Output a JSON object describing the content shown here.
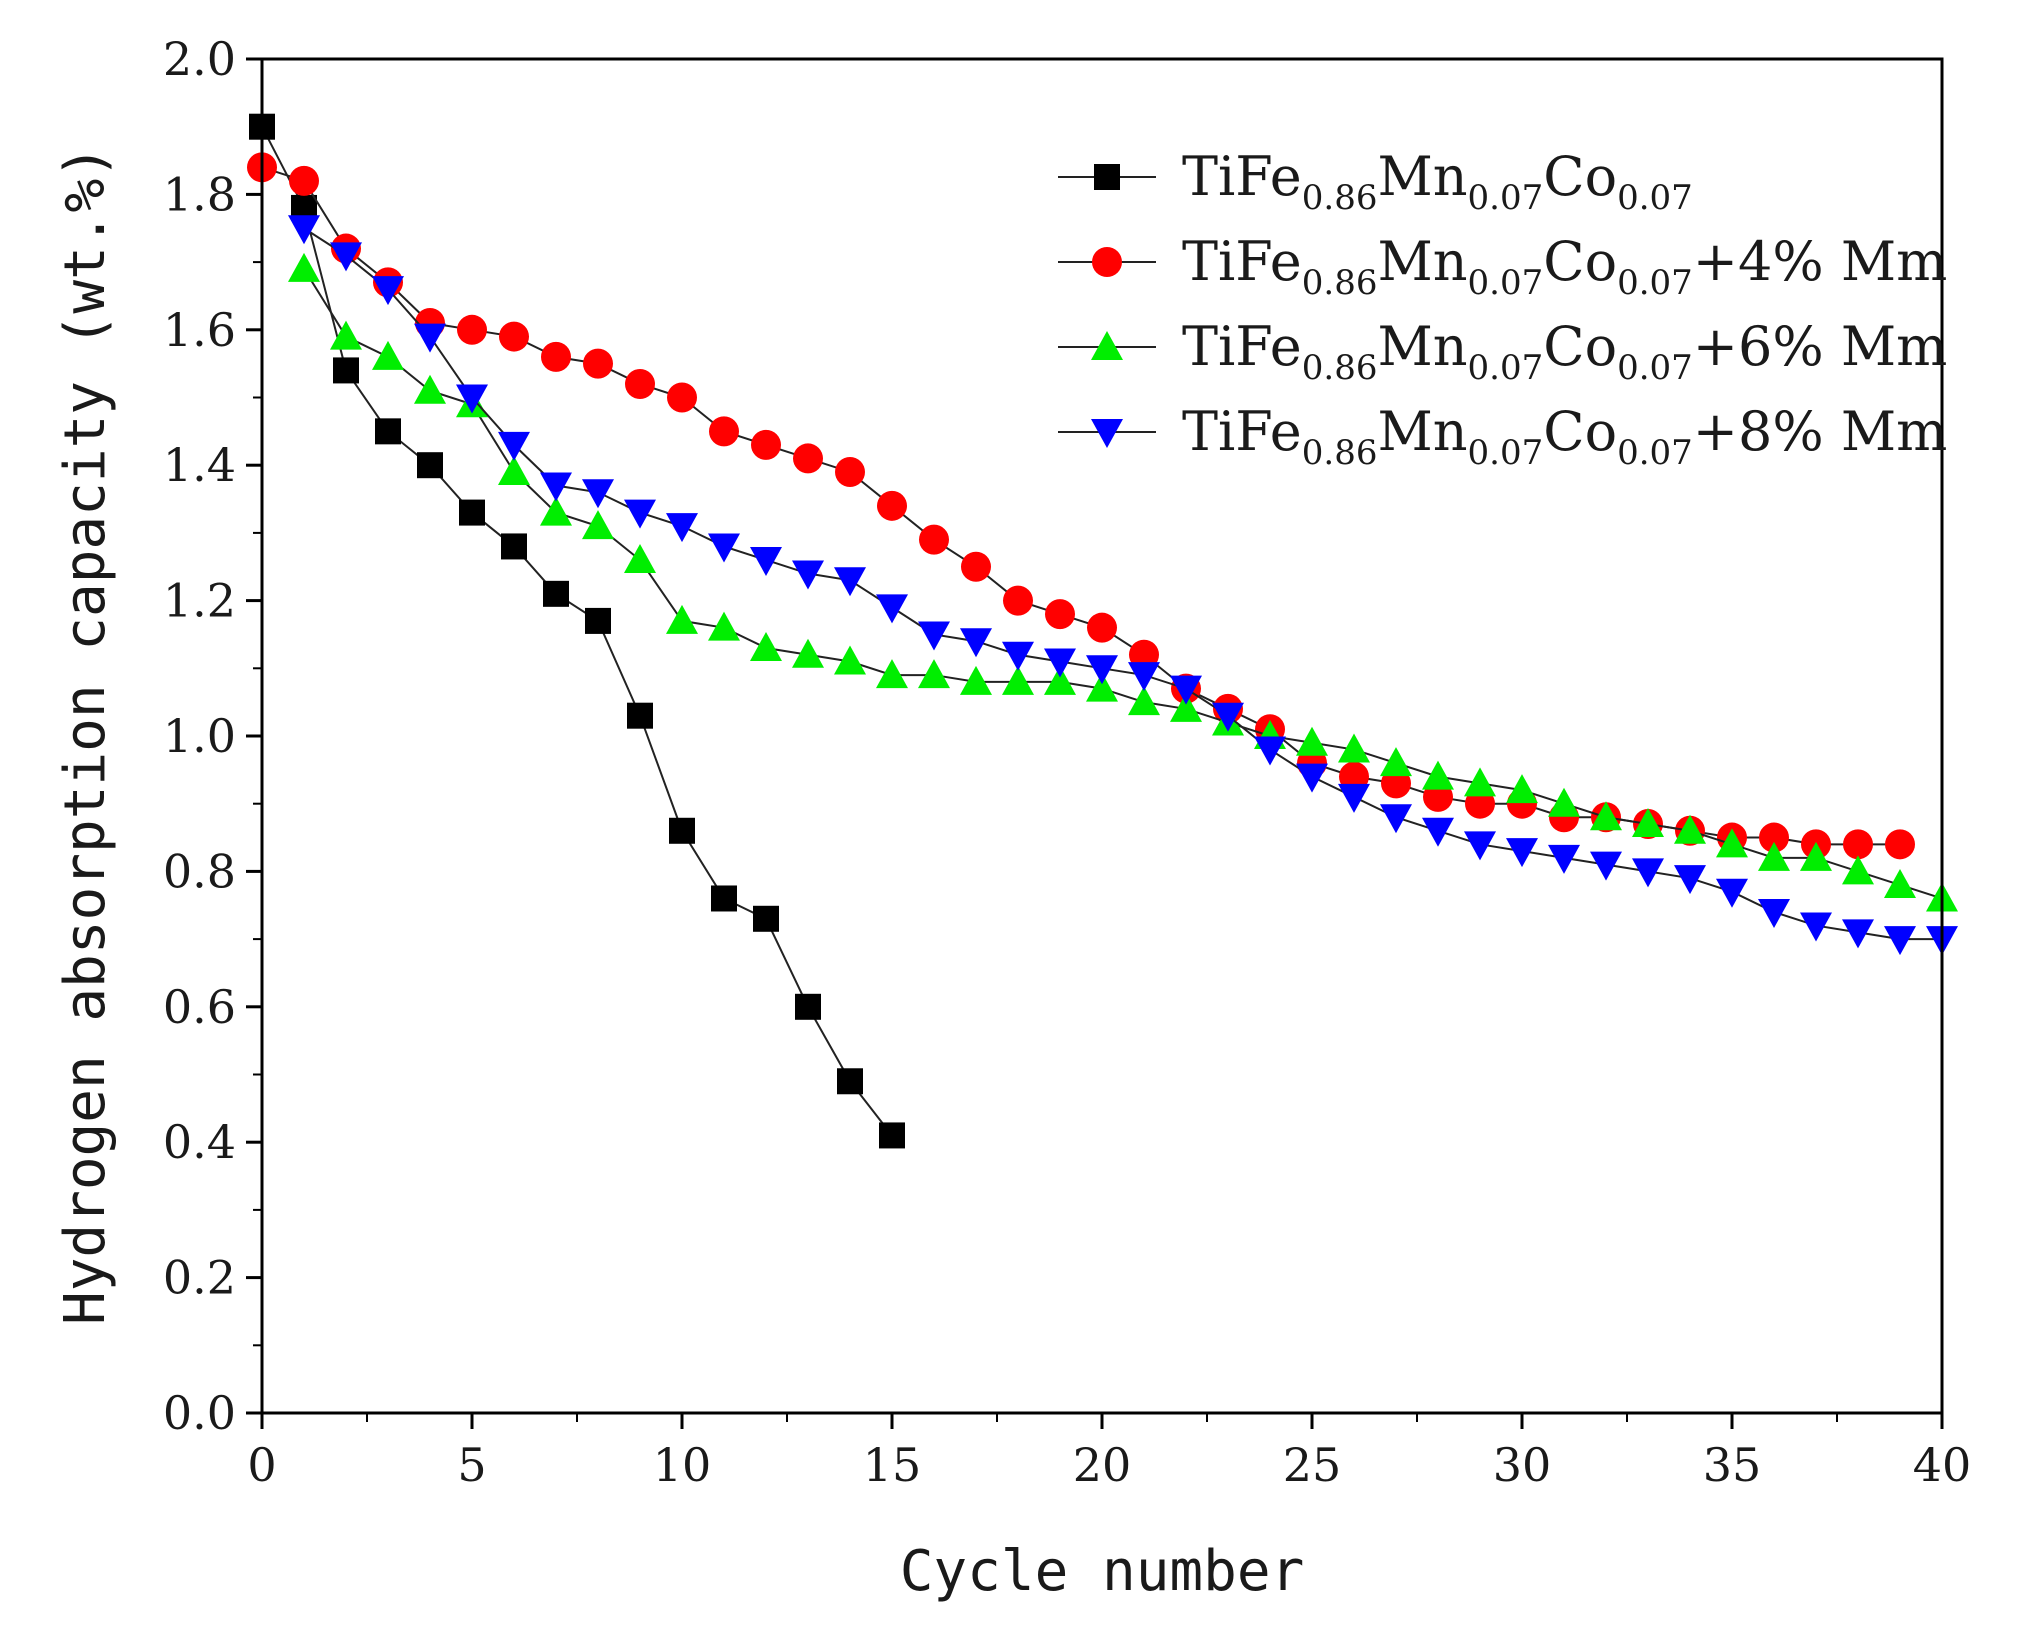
{
  "chart_data": {
    "type": "line",
    "title": "",
    "xlabel": "Cycle number",
    "ylabel": "Hydrogen absorption capacity (wt.%)",
    "xlim": [
      0,
      40
    ],
    "ylim": [
      0.0,
      2.0
    ],
    "x_major_ticks": [
      0,
      5,
      10,
      15,
      20,
      25,
      30,
      35,
      40
    ],
    "x_tick_labels": [
      "0",
      "5",
      "10",
      "15",
      "20",
      "25",
      "30",
      "35",
      "40"
    ],
    "y_major_ticks": [
      0.0,
      0.2,
      0.4,
      0.6,
      0.8,
      1.0,
      1.2,
      1.4,
      1.6,
      1.8,
      2.0
    ],
    "y_tick_labels": [
      "0.0",
      "0.2",
      "0.4",
      "0.6",
      "0.8",
      "1.0",
      "1.2",
      "1.4",
      "1.6",
      "1.8",
      "2.0"
    ],
    "grid": false,
    "legend_position": "top-right",
    "series": [
      {
        "name": "TiFe0.86Mn0.07Co0.07",
        "legend_parts": [
          [
            "TiFe",
            ""
          ],
          [
            "0.86",
            "sub"
          ],
          [
            "Mn",
            ""
          ],
          [
            "0.07",
            "sub"
          ],
          [
            "Co",
            ""
          ],
          [
            "0.07",
            "sub"
          ]
        ],
        "marker": "square",
        "color": "#000000",
        "x": [
          0,
          1,
          2,
          3,
          4,
          5,
          6,
          7,
          8,
          9,
          10,
          11,
          12,
          13,
          14,
          15
        ],
        "values": [
          1.9,
          1.78,
          1.54,
          1.45,
          1.4,
          1.33,
          1.28,
          1.21,
          1.17,
          1.03,
          0.86,
          0.76,
          0.73,
          0.6,
          0.49,
          0.41
        ]
      },
      {
        "name": "TiFe0.86Mn0.07Co0.07+4% Mm",
        "legend_parts": [
          [
            "TiFe",
            ""
          ],
          [
            "0.86",
            "sub"
          ],
          [
            "Mn",
            ""
          ],
          [
            "0.07",
            "sub"
          ],
          [
            "Co",
            ""
          ],
          [
            "0.07",
            "sub"
          ],
          [
            "+4% Mm",
            ""
          ]
        ],
        "marker": "circle",
        "color": "#ff0000",
        "x": [
          0,
          1,
          2,
          3,
          4,
          5,
          6,
          7,
          8,
          9,
          10,
          11,
          12,
          13,
          14,
          15,
          16,
          17,
          18,
          19,
          20,
          21,
          22,
          23,
          24,
          25,
          26,
          27,
          28,
          29,
          30,
          31,
          32,
          33,
          34,
          35,
          36,
          37,
          38,
          39
        ],
        "values": [
          1.84,
          1.82,
          1.72,
          1.67,
          1.61,
          1.6,
          1.59,
          1.56,
          1.55,
          1.52,
          1.5,
          1.45,
          1.43,
          1.41,
          1.39,
          1.34,
          1.29,
          1.25,
          1.2,
          1.18,
          1.16,
          1.12,
          1.07,
          1.04,
          1.01,
          0.96,
          0.94,
          0.93,
          0.91,
          0.9,
          0.9,
          0.88,
          0.88,
          0.87,
          0.86,
          0.85,
          0.85,
          0.84,
          0.84,
          0.84
        ]
      },
      {
        "name": "TiFe0.86Mn0.07Co0.07+6% Mm",
        "legend_parts": [
          [
            "TiFe",
            ""
          ],
          [
            "0.86",
            "sub"
          ],
          [
            "Mn",
            ""
          ],
          [
            "0.07",
            "sub"
          ],
          [
            "Co",
            ""
          ],
          [
            "0.07",
            "sub"
          ],
          [
            "+6% Mm",
            ""
          ]
        ],
        "marker": "triangle-up",
        "color": "#00ee00",
        "x": [
          1,
          2,
          3,
          4,
          5,
          6,
          7,
          8,
          9,
          10,
          11,
          12,
          13,
          14,
          15,
          16,
          17,
          18,
          19,
          20,
          21,
          22,
          23,
          24,
          25,
          26,
          27,
          28,
          29,
          30,
          31,
          32,
          33,
          34,
          35,
          36,
          37,
          38,
          39,
          40
        ],
        "values": [
          1.69,
          1.59,
          1.56,
          1.51,
          1.49,
          1.39,
          1.33,
          1.31,
          1.26,
          1.17,
          1.16,
          1.13,
          1.12,
          1.11,
          1.09,
          1.09,
          1.08,
          1.08,
          1.08,
          1.07,
          1.05,
          1.04,
          1.02,
          1.0,
          0.99,
          0.98,
          0.96,
          0.94,
          0.93,
          0.92,
          0.9,
          0.88,
          0.87,
          0.86,
          0.84,
          0.82,
          0.82,
          0.8,
          0.78,
          0.76
        ]
      },
      {
        "name": "TiFe0.86Mn0.07Co0.07+8% Mm",
        "legend_parts": [
          [
            "TiFe",
            ""
          ],
          [
            "0.86",
            "sub"
          ],
          [
            "Mn",
            ""
          ],
          [
            "0.07",
            "sub"
          ],
          [
            "Co",
            ""
          ],
          [
            "0.07",
            "sub"
          ],
          [
            "+8% Mm",
            ""
          ]
        ],
        "marker": "triangle-down",
        "color": "#0000ff",
        "x": [
          1,
          2,
          3,
          4,
          5,
          6,
          7,
          8,
          9,
          10,
          11,
          12,
          13,
          14,
          15,
          16,
          17,
          18,
          19,
          20,
          21,
          22,
          23,
          24,
          25,
          26,
          27,
          28,
          29,
          30,
          31,
          32,
          33,
          34,
          35,
          36,
          37,
          38,
          39,
          40
        ],
        "values": [
          1.75,
          1.71,
          1.66,
          1.59,
          1.5,
          1.43,
          1.37,
          1.36,
          1.33,
          1.31,
          1.28,
          1.26,
          1.24,
          1.23,
          1.19,
          1.15,
          1.14,
          1.12,
          1.11,
          1.1,
          1.09,
          1.07,
          1.03,
          0.98,
          0.94,
          0.91,
          0.88,
          0.86,
          0.84,
          0.83,
          0.82,
          0.81,
          0.8,
          0.79,
          0.77,
          0.74,
          0.72,
          0.71,
          0.7,
          0.7
        ]
      }
    ]
  }
}
